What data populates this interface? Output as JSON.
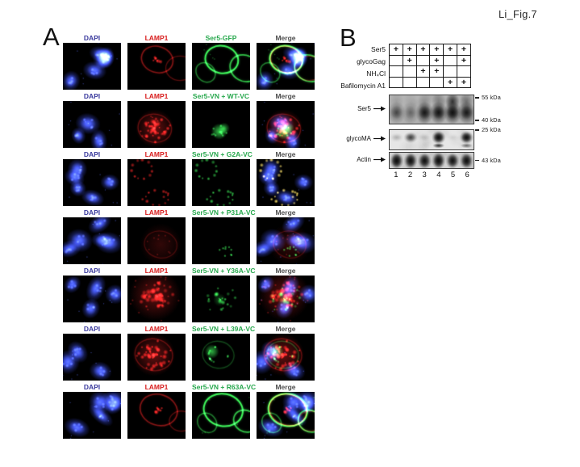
{
  "figure_label": "Li_Fig.7",
  "colors": {
    "dapi_label": "#3b3b9e",
    "lamp1_label": "#d81d1d",
    "gfp_label": "#27a84d",
    "merge_label": "#4d4d4d"
  },
  "panel_a": {
    "label": "A",
    "rows": [
      {
        "headers": [
          "DAPI",
          "LAMP1",
          "Ser5-GFP",
          "Merge"
        ],
        "red_pattern": "membrane-faint",
        "green_pattern": "membrane",
        "nuclei": 6
      },
      {
        "headers": [
          "DAPI",
          "LAMP1",
          "Ser5-VN + WT-VC",
          "Merge"
        ],
        "red_pattern": "vesicular-bright",
        "green_pattern": "blob",
        "nuclei": 3
      },
      {
        "headers": [
          "DAPI",
          "LAMP1",
          "Ser5-VN + G2A-VC",
          "Merge"
        ],
        "red_pattern": "rings",
        "green_pattern": "rings",
        "nuclei": 5
      },
      {
        "headers": [
          "DAPI",
          "LAMP1",
          "Ser5-VN + P31A-VC",
          "Merge"
        ],
        "red_pattern": "diffuse-faint",
        "green_pattern": "dots-few",
        "nuclei": 5
      },
      {
        "headers": [
          "DAPI",
          "LAMP1",
          "Ser5-VN + Y36A-VC",
          "Merge"
        ],
        "red_pattern": "vesicular-large",
        "green_pattern": "dots-cluster",
        "nuclei": 4
      },
      {
        "headers": [
          "DAPI",
          "LAMP1",
          "Ser5-VN + L39A-VC",
          "Merge"
        ],
        "red_pattern": "vesicular-bright",
        "green_pattern": "perinuclear",
        "nuclei": 3
      },
      {
        "headers": [
          "DAPI",
          "LAMP1",
          "Ser5-VN + R63A-VC",
          "Merge"
        ],
        "red_pattern": "membrane-faint",
        "green_pattern": "membrane",
        "nuclei": 5
      }
    ]
  },
  "panel_b": {
    "label": "B",
    "conditions": [
      {
        "label": "Ser5",
        "lanes": [
          "+",
          "+",
          "+",
          "+",
          "+",
          "+"
        ]
      },
      {
        "label": "glycoGag",
        "lanes": [
          "",
          "+",
          "",
          "+",
          "",
          "+"
        ]
      },
      {
        "label": "NH₄Cl",
        "lanes": [
          "",
          "",
          "+",
          "+",
          "",
          ""
        ]
      },
      {
        "label": "Bafilomycin A1",
        "lanes": [
          "",
          "",
          "",
          "",
          "+",
          "+"
        ]
      }
    ],
    "blots": [
      {
        "name": "Ser5",
        "style": "smear",
        "bg": "#b4b4b4",
        "band_intensities": [
          0.5,
          0.32,
          0.88,
          0.95,
          1.0,
          0.88
        ],
        "top_streak": [
          0.15,
          0.1,
          0.25,
          0.35,
          0.95,
          0.5
        ],
        "markers": [
          {
            "text": "55 kDa",
            "pos": "top"
          },
          {
            "text": "40 kDa",
            "pos": "bottom"
          }
        ]
      },
      {
        "name": "glycoMA",
        "style": "sharp",
        "bg": "#e6e6e6",
        "band_y": 0.38,
        "band_ry": 0.2,
        "band_intensities": [
          0.14,
          0.55,
          0.1,
          1.0,
          0.05,
          0.95
        ],
        "lower_band": [
          0,
          0,
          0,
          0.9,
          0,
          0.6
        ],
        "markers": [
          {
            "text": "25 kDa",
            "pos": "top"
          }
        ]
      },
      {
        "name": "Actin",
        "style": "sharp",
        "bg": "#d2d2d2",
        "band_y": 0.52,
        "band_ry": 0.34,
        "band_intensities": [
          1.0,
          0.95,
          0.9,
          1.0,
          0.9,
          0.95
        ],
        "markers": [
          {
            "text": "43 kDa",
            "pos": "mid"
          }
        ]
      }
    ],
    "lane_numbers": [
      "1",
      "2",
      "3",
      "4",
      "5",
      "6"
    ]
  }
}
